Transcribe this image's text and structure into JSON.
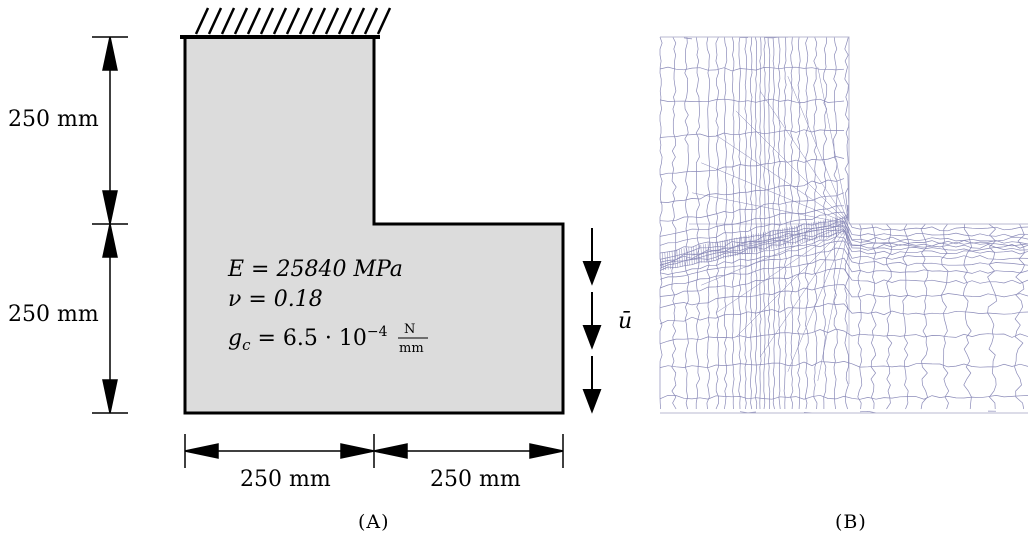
{
  "panel_a": {
    "caption": "(A)",
    "dim_height_upper": "250 mm",
    "dim_height_lower": "250 mm",
    "dim_width_left": "250 mm",
    "dim_width_right": "250 mm",
    "material": {
      "E": "E = 25840 MPa",
      "nu": "ν = 0.18",
      "gc_main": "g",
      "gc_sub": "c",
      "gc_eq": " = 6.5 · 10",
      "gc_exp": "−4",
      "gc_num": "N",
      "gc_den": "mm"
    },
    "load_label": "ū",
    "fill_color": "#dcdcdc",
    "support": "fixed-top-hatch"
  },
  "panel_b": {
    "caption": "(B)",
    "mesh_color": "#8a8ab8",
    "description_refined_band": "crack-path refinement from re-entrant corner to left edge"
  }
}
